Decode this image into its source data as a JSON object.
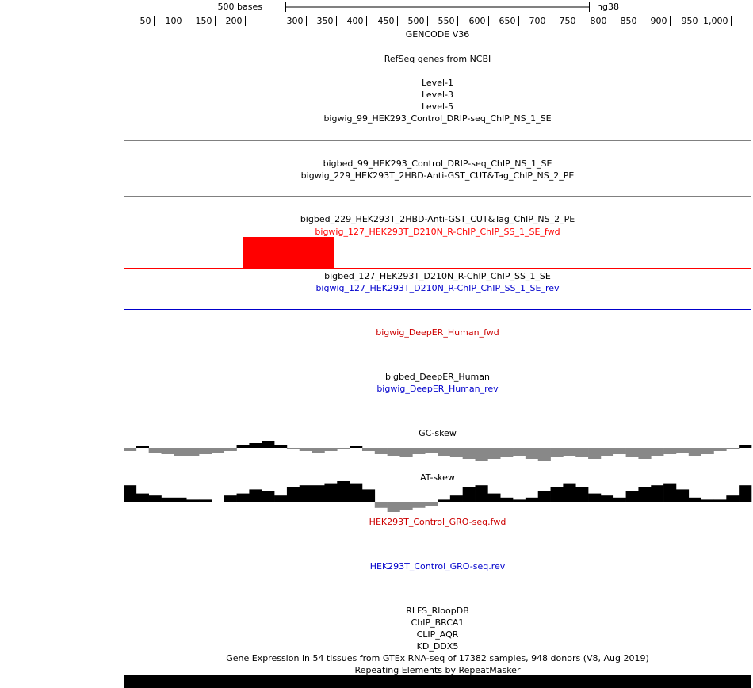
{
  "ruler": {
    "xlim": [
      0,
      1034
    ],
    "scale_bar": {
      "value": 500,
      "label": "500 bases"
    },
    "assembly": "hg38",
    "ticks": [
      50,
      100,
      150,
      200,
      300,
      350,
      400,
      450,
      500,
      550,
      600,
      650,
      700,
      750,
      800,
      850,
      900,
      950,
      {
        "value": 1000,
        "label": "1,000"
      }
    ]
  },
  "tracks": [
    {
      "label": "GENCODE V36",
      "color": "#000000"
    },
    {
      "label": "RefSeq genes from NCBI",
      "color": "#000000"
    },
    {
      "label": "Level-1",
      "color": "#000000"
    },
    {
      "label": "Level-3",
      "color": "#000000"
    },
    {
      "label": "Level-5",
      "color": "#000000"
    },
    {
      "label": "bigwig_99_HEK293_Control_DRIP-seq_ChIP_NS_1_SE",
      "color": "#000000"
    },
    {
      "label": "bigbed_99_HEK293_Control_DRIP-seq_ChIP_NS_1_SE",
      "color": "#000000"
    },
    {
      "label": "bigwig_229_HEK293T_2HBD-Anti-GST_CUT&Tag_ChIP_NS_2_PE",
      "color": "#000000"
    },
    {
      "label": "bigbed_229_HEK293T_2HBD-Anti-GST_CUT&Tag_ChIP_NS_2_PE",
      "color": "#000000"
    },
    {
      "label": "bigwig_127_HEK293T_D210N_R-ChIP_ChIP_SS_1_SE_fwd",
      "color": "#ff0000",
      "feature": [
        196,
        346
      ]
    },
    {
      "label": "bigbed_127_HEK293T_D210N_R-ChIP_ChIP_SS_1_SE",
      "color": "#000000"
    },
    {
      "label": "bigwig_127_HEK293T_D210N_R-ChIP_ChIP_SS_1_SE_rev",
      "color": "#0000cc"
    },
    {
      "label": "bigwig_DeepER_Human_fwd",
      "color": "#cc0000"
    },
    {
      "label": "bigbed_DeepER_Human",
      "color": "#000000"
    },
    {
      "label": "bigwig_DeepER_Human_rev",
      "color": "#0000cc"
    },
    {
      "label": "GC-skew",
      "color": "#000000",
      "values": [
        -0.2,
        0.1,
        -0.3,
        -0.4,
        -0.5,
        -0.5,
        -0.4,
        -0.3,
        -0.2,
        0.2,
        0.3,
        0.4,
        0.2,
        -0.1,
        -0.2,
        -0.3,
        -0.2,
        -0.1,
        0.1,
        -0.2,
        -0.4,
        -0.5,
        -0.6,
        -0.4,
        -0.3,
        -0.5,
        -0.6,
        -0.7,
        -0.8,
        -0.7,
        -0.6,
        -0.5,
        -0.7,
        -0.8,
        -0.6,
        -0.5,
        -0.6,
        -0.7,
        -0.5,
        -0.4,
        -0.6,
        -0.7,
        -0.5,
        -0.4,
        -0.3,
        -0.5,
        -0.4,
        -0.2,
        -0.1,
        0.2
      ]
    },
    {
      "label": "AT-skew",
      "color": "#000000",
      "values": [
        0.8,
        0.4,
        0.3,
        0.2,
        0.2,
        0.1,
        0.1,
        0.0,
        0.3,
        0.4,
        0.6,
        0.5,
        0.3,
        0.7,
        0.8,
        0.8,
        0.9,
        1.0,
        0.9,
        0.6,
        -0.3,
        -0.5,
        -0.4,
        -0.3,
        -0.2,
        0.1,
        0.3,
        0.7,
        0.8,
        0.4,
        0.2,
        0.1,
        0.2,
        0.5,
        0.7,
        0.9,
        0.7,
        0.4,
        0.3,
        0.2,
        0.5,
        0.7,
        0.8,
        0.9,
        0.6,
        0.2,
        0.1,
        0.1,
        0.3,
        0.8
      ]
    },
    {
      "label": "HEK293T_Control_GRO-seq.fwd",
      "color": "#cc0000"
    },
    {
      "label": "HEK293T_Control_GRO-seq.rev",
      "color": "#0000cc"
    },
    {
      "label": "RLFS_RloopDB",
      "color": "#000000"
    },
    {
      "label": "ChIP_BRCA1",
      "color": "#000000"
    },
    {
      "label": "CLIP_AQR",
      "color": "#000000"
    },
    {
      "label": "KD_DDX5",
      "color": "#000000"
    },
    {
      "label": "Gene Expression in 54 tissues from GTEx RNA-seq of 17382 samples, 948 donors (V8, Aug 2019)",
      "color": "#000000"
    },
    {
      "label": "Repeating Elements by RepeatMasker",
      "color": "#000000"
    }
  ]
}
